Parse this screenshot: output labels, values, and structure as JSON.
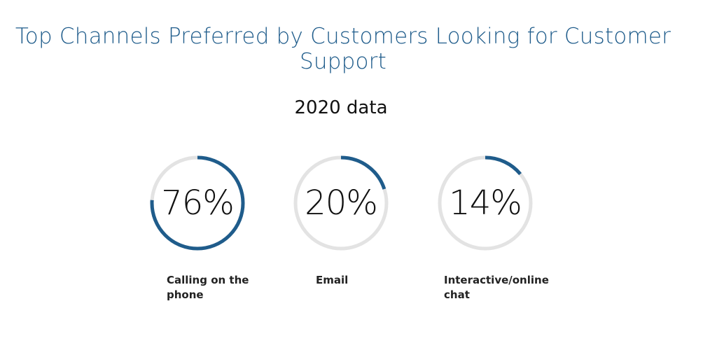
{
  "chart_data": {
    "type": "donut",
    "title": "Top Channels Preferred by Customers Looking for Customer Support",
    "subtitle": "2020 data",
    "categories": [
      "Calling on the phone",
      "Email",
      "Interactive/online chat"
    ],
    "values": [
      76,
      20,
      14
    ],
    "value_labels": [
      "76%",
      "20%",
      "14%"
    ],
    "unit": "%",
    "max": 100,
    "colors": {
      "fill": "#1f5c8b",
      "track": "#e3e3e3",
      "title": "#1f5c8b"
    }
  }
}
